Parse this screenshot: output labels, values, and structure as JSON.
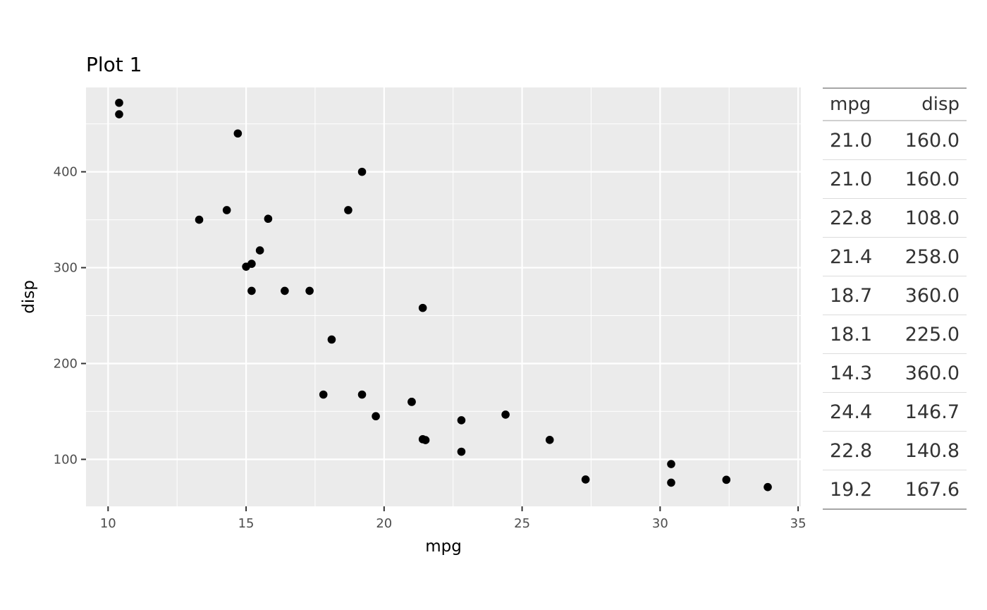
{
  "chart_data": {
    "type": "scatter",
    "title": "Plot 1",
    "xlabel": "mpg",
    "ylabel": "disp",
    "xlim": [
      9.2,
      35.1
    ],
    "ylim": [
      51,
      488
    ],
    "x_ticks": [
      10,
      15,
      20,
      25,
      30,
      35
    ],
    "y_ticks": [
      100,
      200,
      300,
      400
    ],
    "panel_background": "#ebebeb",
    "grid": true,
    "point_color": "#000000",
    "points": [
      {
        "x": 21.0,
        "y": 160.0
      },
      {
        "x": 21.0,
        "y": 160.0
      },
      {
        "x": 22.8,
        "y": 108.0
      },
      {
        "x": 21.4,
        "y": 258.0
      },
      {
        "x": 18.7,
        "y": 360.0
      },
      {
        "x": 18.1,
        "y": 225.0
      },
      {
        "x": 14.3,
        "y": 360.0
      },
      {
        "x": 24.4,
        "y": 146.7
      },
      {
        "x": 22.8,
        "y": 140.8
      },
      {
        "x": 19.2,
        "y": 167.6
      },
      {
        "x": 17.8,
        "y": 167.6
      },
      {
        "x": 16.4,
        "y": 275.8
      },
      {
        "x": 17.3,
        "y": 275.8
      },
      {
        "x": 15.2,
        "y": 275.8
      },
      {
        "x": 10.4,
        "y": 472.0
      },
      {
        "x": 10.4,
        "y": 460.0
      },
      {
        "x": 14.7,
        "y": 440.0
      },
      {
        "x": 32.4,
        "y": 78.7
      },
      {
        "x": 30.4,
        "y": 75.7
      },
      {
        "x": 33.9,
        "y": 71.1
      },
      {
        "x": 21.5,
        "y": 120.1
      },
      {
        "x": 15.5,
        "y": 318.0
      },
      {
        "x": 15.2,
        "y": 304.0
      },
      {
        "x": 13.3,
        "y": 350.0
      },
      {
        "x": 19.2,
        "y": 400.0
      },
      {
        "x": 27.3,
        "y": 79.0
      },
      {
        "x": 26.0,
        "y": 120.3
      },
      {
        "x": 30.4,
        "y": 95.1
      },
      {
        "x": 15.8,
        "y": 351.0
      },
      {
        "x": 19.7,
        "y": 145.0
      },
      {
        "x": 15.0,
        "y": 301.0
      },
      {
        "x": 21.4,
        "y": 121.0
      }
    ]
  },
  "table": {
    "headers": [
      "mpg",
      "disp"
    ],
    "rows": [
      [
        "21.0",
        "160.0"
      ],
      [
        "21.0",
        "160.0"
      ],
      [
        "22.8",
        "108.0"
      ],
      [
        "21.4",
        "258.0"
      ],
      [
        "18.7",
        "360.0"
      ],
      [
        "18.1",
        "225.0"
      ],
      [
        "14.3",
        "360.0"
      ],
      [
        "24.4",
        "146.7"
      ],
      [
        "22.8",
        "140.8"
      ],
      [
        "19.2",
        "167.6"
      ]
    ]
  }
}
